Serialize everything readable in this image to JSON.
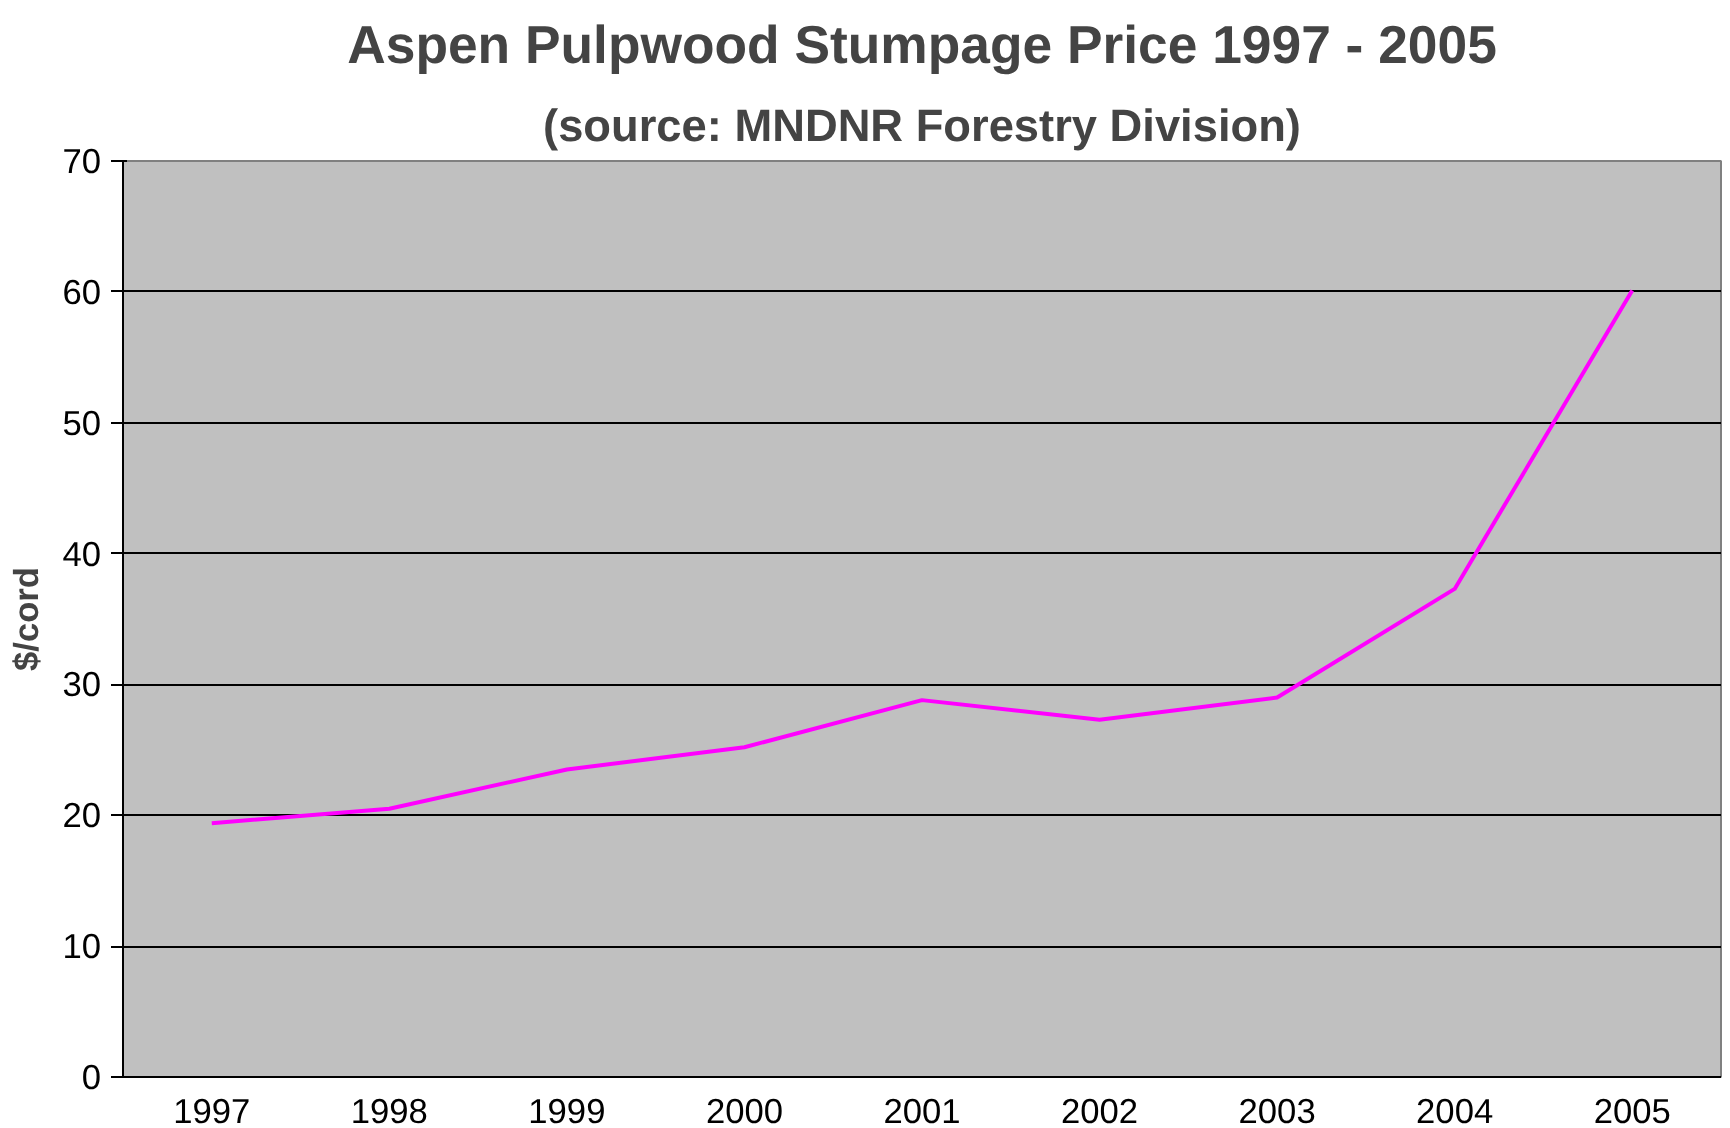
{
  "chart_data": {
    "type": "line",
    "title": "Aspen Pulpwood Stumpage Price 1997 - 2005",
    "subtitle": "(source: MNDNR Forestry Division)",
    "ylabel": "$/cord",
    "categories": [
      "1997",
      "1998",
      "1999",
      "2000",
      "2001",
      "2002",
      "2003",
      "2004",
      "2005"
    ],
    "series": [
      {
        "color": "#ff00ff",
        "values": [
          19.4,
          20.5,
          23.5,
          25.2,
          28.8,
          27.3,
          29.0,
          37.3,
          60.1
        ]
      }
    ],
    "ylim": [
      0,
      70
    ],
    "yticks": [
      0,
      10,
      20,
      30,
      40,
      50,
      60,
      70
    ],
    "grid": "y",
    "marker": "none",
    "line_style": "solid"
  }
}
